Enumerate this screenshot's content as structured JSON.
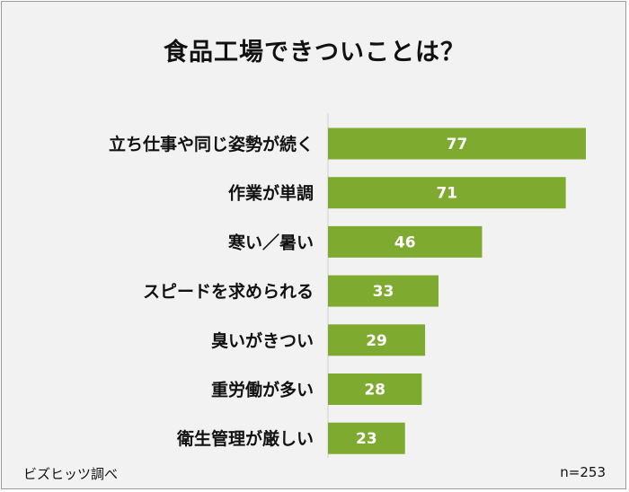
{
  "chart_data": {
    "type": "bar",
    "orientation": "horizontal",
    "title": "食品工場できついことは？",
    "categories": [
      "立ち仕事や同じ姿勢が続く",
      "作業が単調",
      "寒い／暑い",
      "スピードを求められる",
      "臭いがきつい",
      "重労働が多い",
      "衛生管理が厳しい"
    ],
    "values": [
      77,
      71,
      46,
      33,
      29,
      28,
      23
    ],
    "bar_color": "#7faa30",
    "label_color": "#ffffff",
    "xlim": [
      0,
      85
    ],
    "grid": false,
    "legend": "none"
  },
  "footer": {
    "source": "ビズヒッツ調べ",
    "sample": "n=253"
  }
}
